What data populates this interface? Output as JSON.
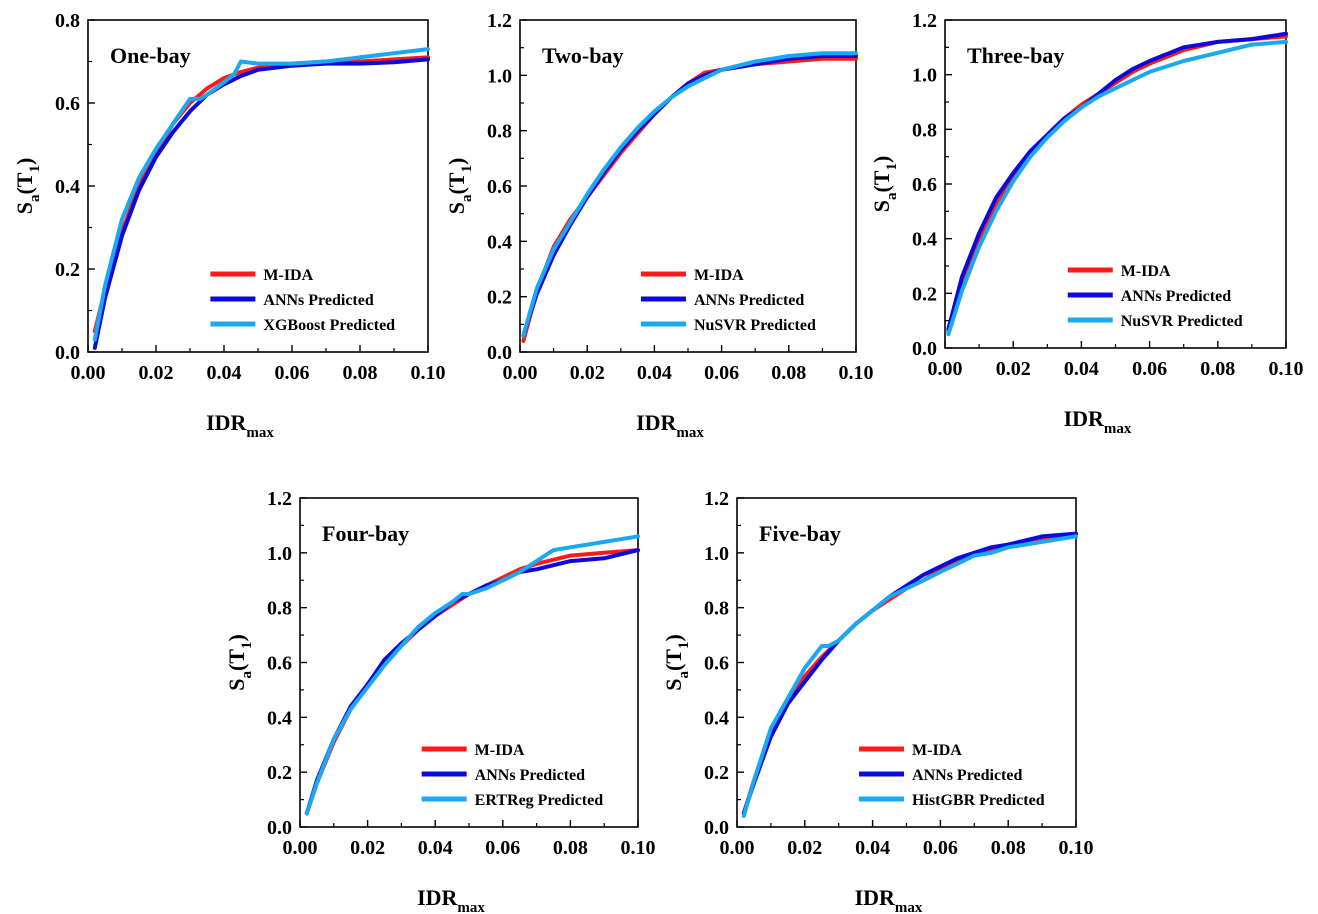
{
  "chart_data": [
    {
      "type": "line",
      "title": "One-bay",
      "xlabel": "IDR",
      "xlabel_sub": "max",
      "ylabel": "S",
      "ylabel_sub": "a",
      "ylabel_rest": "(T",
      "ylabel_sub2": "1",
      "ylabel_end": ")",
      "xlim": [
        0,
        0.1
      ],
      "ylim": [
        0,
        0.8
      ],
      "xticks": [
        "0.00",
        "0.02",
        "0.04",
        "0.06",
        "0.08",
        "0.10"
      ],
      "yticks": [
        "0.0",
        "0.2",
        "0.4",
        "0.6",
        "0.8"
      ],
      "legend_position": "bottom-right",
      "series": [
        {
          "name": "M-IDA",
          "color": "#ff1a1a",
          "x": [
            0.002,
            0.005,
            0.01,
            0.015,
            0.02,
            0.025,
            0.03,
            0.035,
            0.04,
            0.045,
            0.05,
            0.06,
            0.07,
            0.08,
            0.09,
            0.1
          ],
          "y": [
            0.05,
            0.15,
            0.29,
            0.4,
            0.48,
            0.55,
            0.6,
            0.635,
            0.66,
            0.675,
            0.685,
            0.695,
            0.7,
            0.7,
            0.705,
            0.71
          ]
        },
        {
          "name": "ANNs Predicted",
          "color": "#0a0adc",
          "x": [
            0.002,
            0.005,
            0.01,
            0.015,
            0.02,
            0.025,
            0.03,
            0.035,
            0.04,
            0.045,
            0.05,
            0.06,
            0.07,
            0.08,
            0.09,
            0.1
          ],
          "y": [
            0.01,
            0.13,
            0.28,
            0.39,
            0.47,
            0.53,
            0.58,
            0.62,
            0.645,
            0.665,
            0.68,
            0.69,
            0.695,
            0.695,
            0.698,
            0.705
          ]
        },
        {
          "name": "XGBoost Predicted",
          "color": "#1aa8f0",
          "x": [
            0.002,
            0.005,
            0.01,
            0.015,
            0.02,
            0.025,
            0.03,
            0.033,
            0.035,
            0.04,
            0.043,
            0.045,
            0.05,
            0.06,
            0.07,
            0.08,
            0.09,
            0.1
          ],
          "y": [
            0.03,
            0.16,
            0.32,
            0.42,
            0.49,
            0.55,
            0.61,
            0.61,
            0.62,
            0.65,
            0.67,
            0.7,
            0.695,
            0.695,
            0.7,
            0.71,
            0.72,
            0.73
          ]
        }
      ]
    },
    {
      "type": "line",
      "title": "Two-bay",
      "xlabel": "IDR",
      "xlabel_sub": "max",
      "ylabel": "S",
      "ylabel_sub": "a",
      "ylabel_rest": "(T",
      "ylabel_sub2": "1",
      "ylabel_end": ")",
      "xlim": [
        0,
        0.1
      ],
      "ylim": [
        0,
        1.2
      ],
      "xticks": [
        "0.00",
        "0.02",
        "0.04",
        "0.06",
        "0.08",
        "0.10"
      ],
      "yticks": [
        "0.0",
        "0.2",
        "0.4",
        "0.6",
        "0.8",
        "1.0",
        "1.2"
      ],
      "legend_position": "bottom-right",
      "series": [
        {
          "name": "M-IDA",
          "color": "#ff1a1a",
          "x": [
            0.001,
            0.005,
            0.01,
            0.015,
            0.02,
            0.025,
            0.03,
            0.035,
            0.04,
            0.045,
            0.05,
            0.055,
            0.06,
            0.07,
            0.08,
            0.09,
            0.1
          ],
          "y": [
            0.04,
            0.22,
            0.38,
            0.48,
            0.56,
            0.64,
            0.72,
            0.79,
            0.86,
            0.92,
            0.97,
            1.01,
            1.02,
            1.04,
            1.05,
            1.06,
            1.06
          ]
        },
        {
          "name": "ANNs Predicted",
          "color": "#0a0adc",
          "x": [
            0.001,
            0.005,
            0.01,
            0.015,
            0.02,
            0.025,
            0.03,
            0.035,
            0.04,
            0.045,
            0.05,
            0.055,
            0.06,
            0.07,
            0.08,
            0.09,
            0.1
          ],
          "y": [
            0.06,
            0.21,
            0.35,
            0.46,
            0.56,
            0.65,
            0.73,
            0.8,
            0.86,
            0.92,
            0.97,
            1.0,
            1.02,
            1.04,
            1.06,
            1.07,
            1.07
          ]
        },
        {
          "name": "NuSVR Predicted",
          "color": "#1aa8f0",
          "x": [
            0.001,
            0.005,
            0.01,
            0.015,
            0.02,
            0.025,
            0.03,
            0.035,
            0.04,
            0.045,
            0.05,
            0.055,
            0.06,
            0.07,
            0.08,
            0.09,
            0.1
          ],
          "y": [
            0.06,
            0.23,
            0.37,
            0.47,
            0.57,
            0.66,
            0.74,
            0.81,
            0.87,
            0.92,
            0.96,
            0.99,
            1.02,
            1.05,
            1.07,
            1.08,
            1.08
          ]
        }
      ]
    },
    {
      "type": "line",
      "title": "Three-bay",
      "xlabel": "IDR",
      "xlabel_sub": "max",
      "ylabel": "S",
      "ylabel_sub": "a",
      "ylabel_rest": "(T",
      "ylabel_sub2": "1",
      "ylabel_end": ")",
      "xlim": [
        0,
        0.1
      ],
      "ylim": [
        0,
        1.2
      ],
      "xticks": [
        "0.00",
        "0.02",
        "0.04",
        "0.06",
        "0.08",
        "0.10"
      ],
      "yticks": [
        "0.0",
        "0.2",
        "0.4",
        "0.6",
        "0.8",
        "1.0",
        "1.2"
      ],
      "legend_position": "bottom-right",
      "series": [
        {
          "name": "M-IDA",
          "color": "#ff1a1a",
          "x": [
            0.001,
            0.005,
            0.01,
            0.015,
            0.02,
            0.025,
            0.03,
            0.035,
            0.04,
            0.045,
            0.05,
            0.055,
            0.06,
            0.07,
            0.08,
            0.09,
            0.1
          ],
          "y": [
            0.06,
            0.25,
            0.4,
            0.53,
            0.63,
            0.71,
            0.78,
            0.84,
            0.89,
            0.93,
            0.97,
            1.01,
            1.04,
            1.09,
            1.12,
            1.13,
            1.14
          ]
        },
        {
          "name": "ANNs Predicted",
          "color": "#0a0adc",
          "x": [
            0.001,
            0.005,
            0.01,
            0.015,
            0.02,
            0.025,
            0.03,
            0.035,
            0.04,
            0.045,
            0.05,
            0.055,
            0.06,
            0.07,
            0.08,
            0.09,
            0.1
          ],
          "y": [
            0.07,
            0.26,
            0.42,
            0.55,
            0.64,
            0.72,
            0.78,
            0.84,
            0.88,
            0.93,
            0.98,
            1.02,
            1.05,
            1.1,
            1.12,
            1.13,
            1.15
          ]
        },
        {
          "name": "NuSVR Predicted",
          "color": "#1aa8f0",
          "x": [
            0.001,
            0.005,
            0.01,
            0.015,
            0.02,
            0.025,
            0.03,
            0.035,
            0.04,
            0.045,
            0.05,
            0.055,
            0.06,
            0.07,
            0.08,
            0.09,
            0.1
          ],
          "y": [
            0.05,
            0.21,
            0.37,
            0.5,
            0.61,
            0.7,
            0.77,
            0.83,
            0.88,
            0.92,
            0.95,
            0.98,
            1.01,
            1.05,
            1.08,
            1.11,
            1.12
          ]
        }
      ]
    },
    {
      "type": "line",
      "title": "Four-bay",
      "xlabel": "IDR",
      "xlabel_sub": "max",
      "ylabel": "S",
      "ylabel_sub": "a",
      "ylabel_rest": "(T",
      "ylabel_sub2": "1",
      "ylabel_end": ")",
      "xlim": [
        0,
        0.1
      ],
      "ylim": [
        0,
        1.2
      ],
      "xticks": [
        "0.00",
        "0.02",
        "0.04",
        "0.06",
        "0.08",
        "0.10"
      ],
      "yticks": [
        "0.0",
        "0.2",
        "0.4",
        "0.6",
        "0.8",
        "1.0",
        "1.2"
      ],
      "legend_position": "bottom-right",
      "series": [
        {
          "name": "M-IDA",
          "color": "#ff1a1a",
          "x": [
            0.002,
            0.005,
            0.01,
            0.015,
            0.02,
            0.025,
            0.03,
            0.035,
            0.04,
            0.045,
            0.05,
            0.055,
            0.06,
            0.065,
            0.07,
            0.08,
            0.09,
            0.1
          ],
          "y": [
            0.05,
            0.16,
            0.31,
            0.43,
            0.52,
            0.6,
            0.66,
            0.72,
            0.77,
            0.81,
            0.85,
            0.88,
            0.91,
            0.94,
            0.96,
            0.99,
            1.0,
            1.01
          ]
        },
        {
          "name": "ANNs Predicted",
          "color": "#0a0adc",
          "x": [
            0.002,
            0.005,
            0.01,
            0.015,
            0.02,
            0.025,
            0.03,
            0.035,
            0.04,
            0.045,
            0.05,
            0.055,
            0.06,
            0.065,
            0.07,
            0.08,
            0.09,
            0.1
          ],
          "y": [
            0.05,
            0.17,
            0.32,
            0.44,
            0.52,
            0.61,
            0.67,
            0.72,
            0.77,
            0.82,
            0.85,
            0.88,
            0.9,
            0.93,
            0.94,
            0.97,
            0.98,
            1.01
          ]
        },
        {
          "name": "ERTReg Predicted",
          "color": "#1aa8f0",
          "x": [
            0.002,
            0.005,
            0.01,
            0.015,
            0.02,
            0.025,
            0.03,
            0.035,
            0.04,
            0.045,
            0.048,
            0.05,
            0.055,
            0.06,
            0.065,
            0.07,
            0.075,
            0.08,
            0.09,
            0.1
          ],
          "y": [
            0.05,
            0.16,
            0.32,
            0.43,
            0.51,
            0.59,
            0.66,
            0.73,
            0.78,
            0.82,
            0.85,
            0.85,
            0.87,
            0.9,
            0.93,
            0.97,
            1.01,
            1.02,
            1.04,
            1.06
          ]
        }
      ]
    },
    {
      "type": "line",
      "title": "Five-bay",
      "xlabel": "IDR",
      "xlabel_sub": "max",
      "ylabel": "S",
      "ylabel_sub": "a",
      "ylabel_rest": "(T",
      "ylabel_sub2": "1",
      "ylabel_end": ")",
      "xlim": [
        0,
        0.1
      ],
      "ylim": [
        0,
        1.2
      ],
      "xticks": [
        "0.00",
        "0.02",
        "0.04",
        "0.06",
        "0.08",
        "0.10"
      ],
      "yticks": [
        "0.0",
        "0.2",
        "0.4",
        "0.6",
        "0.8",
        "1.0",
        "1.2"
      ],
      "legend_position": "bottom-right",
      "series": [
        {
          "name": "M-IDA",
          "color": "#ff1a1a",
          "x": [
            0.002,
            0.005,
            0.01,
            0.015,
            0.02,
            0.025,
            0.03,
            0.035,
            0.04,
            0.045,
            0.05,
            0.055,
            0.06,
            0.065,
            0.07,
            0.075,
            0.08,
            0.09,
            0.1
          ],
          "y": [
            0.05,
            0.17,
            0.33,
            0.45,
            0.55,
            0.62,
            0.68,
            0.74,
            0.79,
            0.83,
            0.87,
            0.9,
            0.94,
            0.97,
            0.99,
            1.01,
            1.03,
            1.05,
            1.07
          ]
        },
        {
          "name": "ANNs Predicted",
          "color": "#0a0adc",
          "x": [
            0.002,
            0.005,
            0.01,
            0.015,
            0.02,
            0.025,
            0.03,
            0.035,
            0.04,
            0.045,
            0.05,
            0.055,
            0.06,
            0.065,
            0.07,
            0.075,
            0.08,
            0.09,
            0.1
          ],
          "y": [
            0.05,
            0.16,
            0.33,
            0.45,
            0.53,
            0.61,
            0.68,
            0.74,
            0.79,
            0.84,
            0.88,
            0.92,
            0.95,
            0.98,
            1.0,
            1.02,
            1.03,
            1.06,
            1.07
          ]
        },
        {
          "name": "HistGBR Predicted",
          "color": "#1aa8f0",
          "x": [
            0.002,
            0.005,
            0.01,
            0.015,
            0.02,
            0.025,
            0.027,
            0.03,
            0.035,
            0.04,
            0.045,
            0.05,
            0.055,
            0.06,
            0.065,
            0.07,
            0.075,
            0.08,
            0.09,
            0.1
          ],
          "y": [
            0.04,
            0.17,
            0.36,
            0.47,
            0.58,
            0.66,
            0.66,
            0.68,
            0.74,
            0.79,
            0.84,
            0.87,
            0.9,
            0.93,
            0.96,
            0.99,
            1.0,
            1.02,
            1.04,
            1.06
          ]
        }
      ]
    }
  ]
}
